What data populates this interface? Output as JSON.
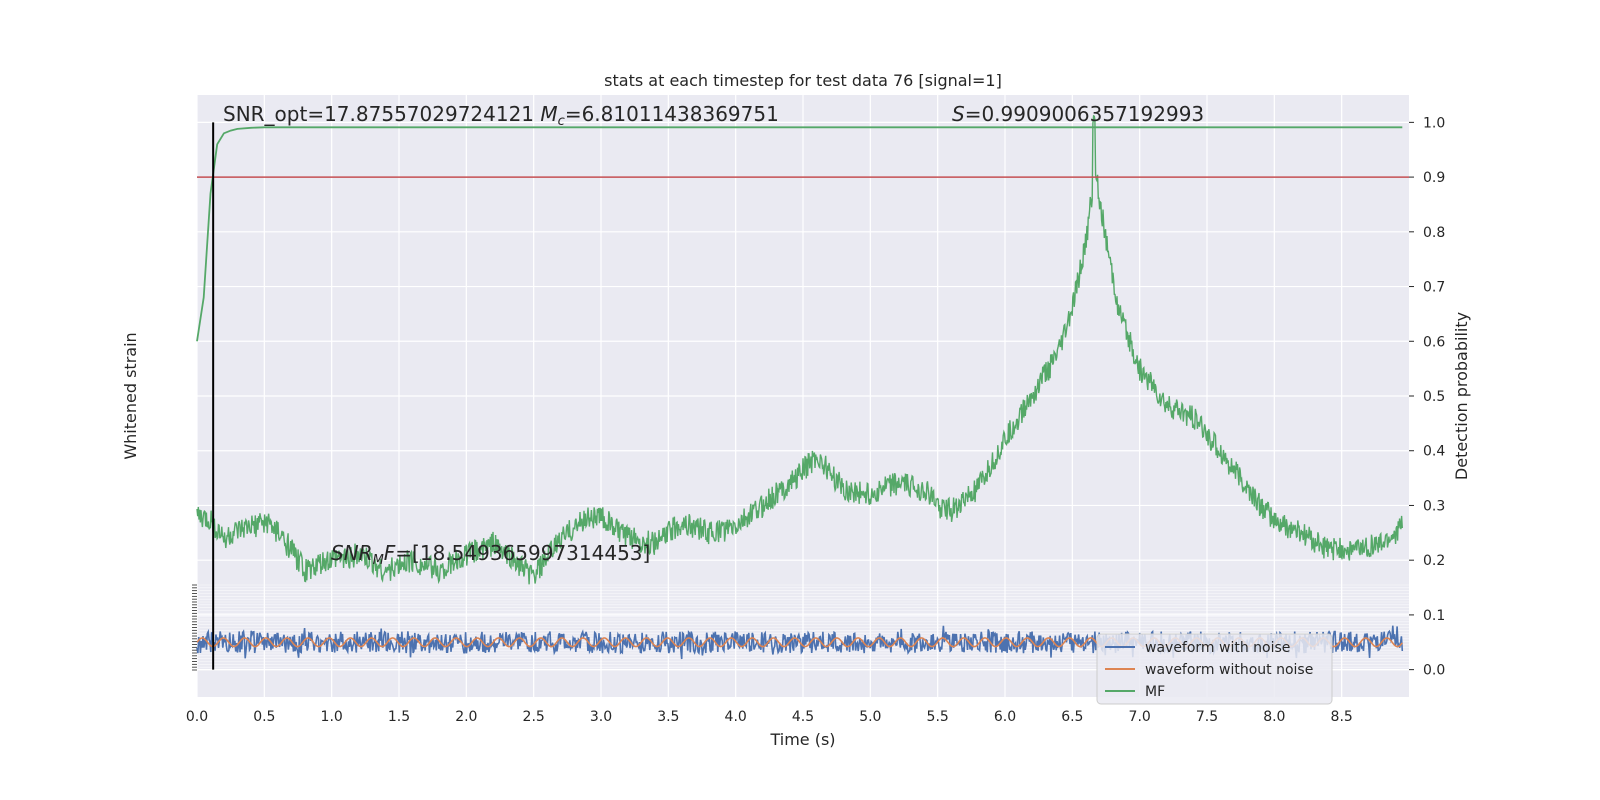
{
  "chart_data": {
    "type": "line",
    "title": "stats at each timestep for test data 76 [signal=1]",
    "xlabel": "Time (s)",
    "ylabel_left": "Whitened strain",
    "ylabel_right": "Detection probability",
    "xlim": [
      0.0,
      9.0
    ],
    "ylim_right": [
      -0.05,
      1.05
    ],
    "x_ticks": [
      "0.0",
      "0.5",
      "1.0",
      "1.5",
      "2.0",
      "2.5",
      "3.0",
      "3.5",
      "4.0",
      "4.5",
      "5.0",
      "5.5",
      "6.0",
      "6.5",
      "7.0",
      "7.5",
      "8.0",
      "8.5"
    ],
    "right_ticks": [
      "0.0",
      "0.1",
      "0.2",
      "0.3",
      "0.4",
      "0.5",
      "0.6",
      "0.7",
      "0.8",
      "0.9",
      "1.0"
    ],
    "grid": true,
    "legend_position": "lower-right",
    "threshold": 0.9,
    "vertical_marker_x": 0.12,
    "annotations": {
      "snr_opt": "SNR_opt=17.87557029724121",
      "mc_symbol": "M",
      "mc_sub": "c",
      "mc_value": "=6.81011438369751",
      "s_symbol": "S",
      "s_value": "=0.9909006357192993",
      "mf_symbol": "SNR",
      "mf_sub": "M",
      "mf_rest": "F",
      "mf_value": "=[18.549365997314453]"
    },
    "series": [
      {
        "name": "waveform with noise",
        "color": "#4c72b0",
        "description_level": "noise band around strain 0"
      },
      {
        "name": "waveform without noise",
        "color": "#dd8452"
      },
      {
        "name": "MF",
        "color": "#55a868",
        "x": [
          0.0,
          0.1,
          0.2,
          0.3,
          0.4,
          0.5,
          0.6,
          0.7,
          0.8,
          0.9,
          1.0,
          1.2,
          1.4,
          1.6,
          1.8,
          2.0,
          2.2,
          2.4,
          2.5,
          2.7,
          2.9,
          3.0,
          3.2,
          3.4,
          3.6,
          3.8,
          4.0,
          4.2,
          4.4,
          4.6,
          4.8,
          5.0,
          5.2,
          5.4,
          5.5,
          5.6,
          5.8,
          6.0,
          6.2,
          6.4,
          6.5,
          6.6,
          6.67,
          6.75,
          6.85,
          7.0,
          7.2,
          7.4,
          7.6,
          7.8,
          8.0,
          8.2,
          8.4,
          8.6,
          8.8,
          8.95
        ],
        "values": [
          0.28,
          0.27,
          0.24,
          0.25,
          0.26,
          0.27,
          0.25,
          0.22,
          0.18,
          0.19,
          0.2,
          0.21,
          0.18,
          0.2,
          0.18,
          0.21,
          0.23,
          0.19,
          0.17,
          0.24,
          0.28,
          0.28,
          0.24,
          0.23,
          0.27,
          0.25,
          0.26,
          0.3,
          0.34,
          0.39,
          0.33,
          0.32,
          0.34,
          0.33,
          0.3,
          0.29,
          0.33,
          0.42,
          0.5,
          0.58,
          0.66,
          0.78,
          0.92,
          0.78,
          0.65,
          0.55,
          0.48,
          0.46,
          0.4,
          0.33,
          0.27,
          0.25,
          0.22,
          0.22,
          0.23,
          0.26
        ]
      }
    ],
    "mf_curve": {
      "x": [
        0.0,
        0.05,
        0.1,
        0.15,
        0.2,
        0.25,
        0.3,
        0.4,
        0.5,
        1.0,
        9.0
      ],
      "values": [
        0.6,
        0.68,
        0.87,
        0.96,
        0.98,
        0.985,
        0.988,
        0.99,
        0.991,
        0.991,
        0.991
      ]
    },
    "noise_band": {
      "half_amplitude": 0.02,
      "center": 0.05
    }
  }
}
